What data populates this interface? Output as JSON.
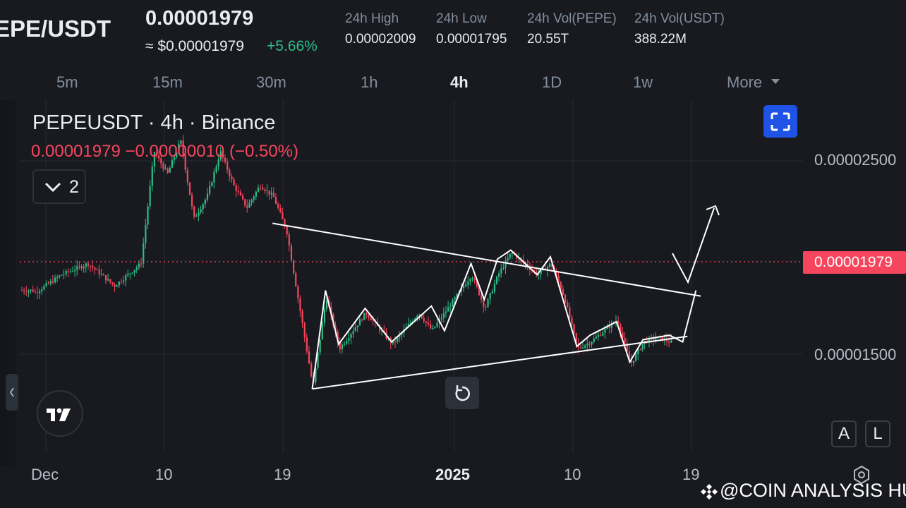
{
  "header": {
    "pair": "EPE/USDT",
    "price": "0.00001979",
    "usd_price": "≈ $0.00001979",
    "change": "+5.66%",
    "stats": [
      {
        "label": "24h High",
        "value": "0.00002009"
      },
      {
        "label": "24h Low",
        "value": "0.00001795"
      },
      {
        "label": "24h Vol(PEPE)",
        "value": "20.55T"
      },
      {
        "label": "24h Vol(USDT)",
        "value": "388.22M"
      }
    ]
  },
  "intervals": [
    "5m",
    "15m",
    "30m",
    "1h",
    "4h",
    "1D",
    "1w",
    "More"
  ],
  "active_interval": "4h",
  "legend": {
    "title": "PEPEUSDT · 4h · Binance",
    "ohlc": "0.00001979  −0.00000010 (−0.50%)",
    "collapse_count": "2"
  },
  "y_axis": {
    "ticks": [
      "0.00002500",
      "0.00001500"
    ],
    "last_price": "0.00001979"
  },
  "x_axis": {
    "ticks": [
      "Dec",
      "10",
      "19",
      "2025",
      "10",
      "19"
    ]
  },
  "buttons": {
    "auto": "A",
    "log": "L"
  },
  "watermark": "@COIN ANALYSIS HUB",
  "colors": {
    "up": "#2ebd85",
    "down": "#f6465d",
    "background": "#181a20",
    "accent": "#1e53e5"
  },
  "icons": [
    "chevron-down-icon",
    "fullscreen-icon",
    "reset-icon",
    "tradingview-logo-icon",
    "settings-icon",
    "binance-icon",
    "chevron-left-icon",
    "more-caret-icon"
  ],
  "chart_data": {
    "type": "candlestick",
    "symbol": "PEPEUSDT",
    "interval": "4h",
    "exchange": "Binance",
    "ylim": [
      1.26e-05,
      2.83e-05
    ],
    "close_path": [
      [
        "Nov 29",
        1.97e-05
      ],
      [
        "Dec 1",
        2.05e-05
      ],
      [
        "Dec 3",
        2.1e-05
      ],
      [
        "Dec 5",
        2e-05
      ],
      [
        "Dec 7",
        2.1e-05
      ],
      [
        "Dec 8",
        2.6e-05
      ],
      [
        "Dec 9",
        2.5e-05
      ],
      [
        "Dec 10",
        2.65e-05
      ],
      [
        "Dec 11",
        2.3e-05
      ],
      [
        "Dec 12",
        2.4e-05
      ],
      [
        "Dec 13",
        2.6e-05
      ],
      [
        "Dec 14",
        2.45e-05
      ],
      [
        "Dec 15",
        2.35e-05
      ],
      [
        "Dec 16",
        2.45e-05
      ],
      [
        "Dec 17",
        2.4e-05
      ],
      [
        "Dec 18",
        2.25e-05
      ],
      [
        "Dec 19",
        1.9e-05
      ],
      [
        "Dec 20",
        1.55e-05
      ],
      [
        "Dec 21",
        1.95e-05
      ],
      [
        "Dec 22",
        1.72e-05
      ],
      [
        "Dec 24",
        1.88e-05
      ],
      [
        "Dec 26",
        1.74e-05
      ],
      [
        "Dec 28",
        1.88e-05
      ],
      [
        "Dec 29",
        1.8e-05
      ],
      [
        "Jan 1",
        2.05e-05
      ],
      [
        "Jan 2",
        1.9e-05
      ],
      [
        "Jan 3",
        2.05e-05
      ],
      [
        "Jan 4",
        2.15e-05
      ],
      [
        "Jan 6",
        2.05e-05
      ],
      [
        "Jan 7",
        2.1e-05
      ],
      [
        "Jan 8",
        1.95e-05
      ],
      [
        "Jan 9",
        1.72e-05
      ],
      [
        "Jan 10",
        1.75e-05
      ],
      [
        "Jan 11",
        1.8e-05
      ],
      [
        "Jan 12",
        1.85e-05
      ],
      [
        "Jan 13",
        1.65e-05
      ],
      [
        "Jan 14",
        1.75e-05
      ],
      [
        "Jan 15",
        1.77e-05
      ],
      [
        "Jan 17",
        1.73e-05
      ],
      [
        "Jan 18",
        1.95e-05
      ],
      [
        "Jan 19",
        1.83e-05
      ],
      [
        "Jan 19",
        1.98e-05
      ]
    ],
    "last_price": 1.979e-05,
    "annotations": [
      {
        "type": "descending-trendline",
        "from": [
          "Dec 17",
          2.28e-05
        ],
        "to": [
          "Jan 19",
          1.98e-05
        ]
      },
      {
        "type": "ascending-trendline",
        "from": [
          "Dec 20",
          1.54e-05
        ],
        "to": [
          "Jan 18",
          1.8e-05
        ]
      },
      {
        "type": "projection-arrow",
        "points": [
          [
            "Jan 19",
            1.98e-05
          ],
          [
            "Jan 19",
            1.85e-05
          ],
          [
            "Jan 20",
            2.25e-05
          ]
        ]
      }
    ]
  }
}
